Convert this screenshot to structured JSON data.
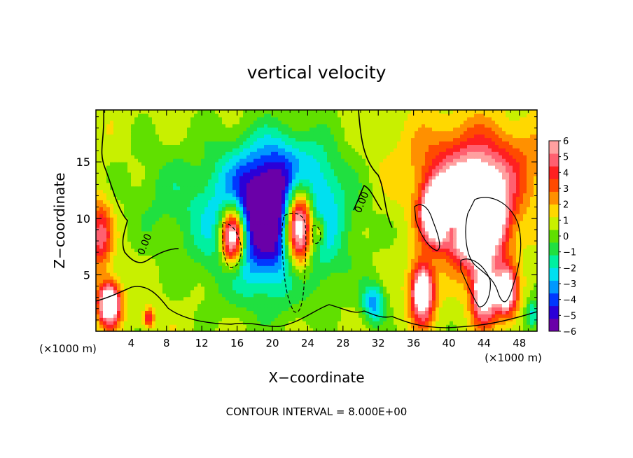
{
  "chart_data": {
    "type": "heatmap",
    "title": "vertical velocity",
    "xlabel": "X−coordinate",
    "ylabel": "Z−coordinate",
    "x_unit": "(×1000 m)",
    "y_unit": "(×1000 m)",
    "xlim": [
      0,
      50
    ],
    "ylim": [
      0,
      19.6
    ],
    "x_ticks": [
      4,
      8,
      12,
      16,
      20,
      24,
      28,
      32,
      36,
      40,
      44,
      48
    ],
    "y_ticks": [
      5,
      10,
      15
    ],
    "footer": "CONTOUR INTERVAL = 8.000E+00",
    "contour_labels": [
      "0.00",
      "0.00",
      "0.00"
    ],
    "colorbar": {
      "ticks": [
        "6",
        "5",
        "4",
        "3",
        "2",
        "1",
        "0",
        "−1",
        "−2",
        "−3",
        "−4",
        "−5",
        "−6"
      ],
      "range": [
        -6,
        6
      ],
      "colors": [
        "#6a00a8",
        "#2a00d8",
        "#0038ff",
        "#0098ff",
        "#00e0f0",
        "#00f0a0",
        "#20e040",
        "#60e000",
        "#c8f000",
        "#ffd800",
        "#ff9000",
        "#ff4a00",
        "#ff2020",
        "#ff6070",
        "#ffa0a0"
      ]
    },
    "features": [
      {
        "kind": "updraft_core",
        "x": 23,
        "z": 9.5,
        "sx": 1.7,
        "sz": 3.8,
        "w": 12
      },
      {
        "kind": "updraft_core",
        "x": 15.5,
        "z": 8.5,
        "sx": 1.4,
        "sz": 2.6,
        "w": 10
      },
      {
        "kind": "updraft_core",
        "x": 25.5,
        "z": 9,
        "sx": 0.6,
        "sz": 1.2,
        "w": 3
      },
      {
        "kind": "downdraft_halo",
        "x": 20,
        "z": 9.5,
        "sx": 7,
        "sz": 6,
        "w": -7
      },
      {
        "kind": "downdraft_upper",
        "x": 21,
        "z": 13.5,
        "sx": 5.5,
        "sz": 4,
        "w": -3
      },
      {
        "kind": "updraft_cell",
        "x": 43,
        "z": 10,
        "sx": 3.2,
        "sz": 3.5,
        "w": 14
      },
      {
        "kind": "updraft_cell",
        "x": 38.5,
        "z": 10.5,
        "sx": 1.6,
        "sz": 2.5,
        "w": 9
      },
      {
        "kind": "updraft_cell",
        "x": 37,
        "z": 3.5,
        "sx": 1.3,
        "sz": 2.6,
        "w": 8
      },
      {
        "kind": "updraft_cell",
        "x": 44,
        "z": 3.5,
        "sx": 1.4,
        "sz": 2.6,
        "w": 8
      },
      {
        "kind": "updraft_cell",
        "x": 46.5,
        "z": 3.5,
        "sx": 1.2,
        "sz": 2.2,
        "w": 7
      },
      {
        "kind": "updraft_cell",
        "x": 40.5,
        "z": 9,
        "sx": 0.9,
        "sz": 1,
        "w": -4
      },
      {
        "kind": "updraft_anvil",
        "x": 43,
        "z": 14.5,
        "sx": 7,
        "sz": 3.8,
        "w": 4
      },
      {
        "kind": "updraft_edge",
        "x": 1.5,
        "z": 2.5,
        "sx": 1.2,
        "sz": 1.8,
        "w": 9
      },
      {
        "kind": "updraft_edge",
        "x": 0.5,
        "z": 8.5,
        "sx": 1.3,
        "sz": 3,
        "w": 4
      },
      {
        "kind": "updraft_edge",
        "x": 6,
        "z": 1.2,
        "sx": 0.6,
        "sz": 0.8,
        "w": 4
      },
      {
        "kind": "downdraft_edge",
        "x": 31.5,
        "z": 2.5,
        "sx": 1.3,
        "sz": 1.8,
        "w": -4
      },
      {
        "kind": "downdraft_edge",
        "x": 49.5,
        "z": 1.5,
        "sx": 0.8,
        "sz": 1.4,
        "w": -3
      },
      {
        "kind": "background",
        "x": 8,
        "z": 12,
        "sx": 5,
        "sz": 5,
        "w": -1.2
      }
    ]
  }
}
